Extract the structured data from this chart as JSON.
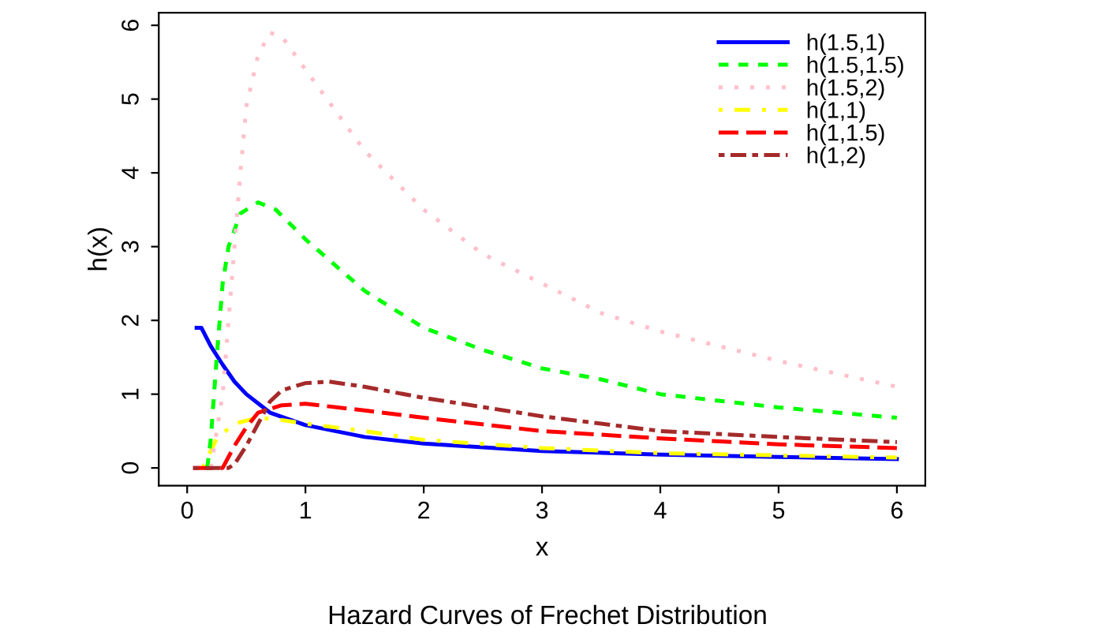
{
  "chart_data": {
    "type": "line",
    "title": "Hazard Curves of Frechet Distribution",
    "xlabel": "x",
    "ylabel": "h(x)",
    "xlim": [
      -0.24,
      6.24
    ],
    "ylim": [
      -0.24,
      6.17
    ],
    "xticks": [
      0,
      1,
      2,
      3,
      4,
      5,
      6
    ],
    "yticks": [
      0,
      1,
      2,
      3,
      4,
      5,
      6
    ],
    "grid": false,
    "legend": "top right",
    "series": [
      {
        "name": "h(1.5,1)",
        "color": "#0000ff",
        "line_style": "solid",
        "x": [
          0.08,
          0.12,
          0.2,
          0.3,
          0.4,
          0.5,
          0.7,
          1,
          1.5,
          2,
          3,
          4,
          5,
          6
        ],
        "values": [
          1.9,
          1.9,
          1.65,
          1.4,
          1.17,
          1.0,
          0.75,
          0.58,
          0.42,
          0.33,
          0.23,
          0.18,
          0.15,
          0.12
        ]
      },
      {
        "name": "h(1.5,1.5)",
        "color": "#00ff00",
        "line_style": "dashed",
        "x": [
          0.17,
          0.2,
          0.25,
          0.3,
          0.35,
          0.45,
          0.6,
          0.75,
          1,
          1.5,
          2,
          2.5,
          3,
          3.5,
          4,
          5,
          6
        ],
        "values": [
          0,
          0.4,
          1.5,
          2.5,
          3.0,
          3.45,
          3.6,
          3.5,
          3.1,
          2.4,
          1.9,
          1.6,
          1.35,
          1.2,
          1.0,
          0.82,
          0.68
        ]
      },
      {
        "name": "h(1.5,2)",
        "color": "#ffc0cb",
        "line_style": "dotted",
        "x": [
          0.2,
          0.3,
          0.35,
          0.4,
          0.45,
          0.5,
          0.6,
          0.7,
          0.8,
          1,
          1.5,
          2,
          2.5,
          3,
          3.5,
          4,
          5,
          6
        ],
        "values": [
          0,
          1.0,
          2.0,
          3.0,
          4.0,
          4.9,
          5.6,
          5.9,
          5.85,
          5.4,
          4.3,
          3.5,
          2.9,
          2.5,
          2.1,
          1.85,
          1.45,
          1.1
        ]
      },
      {
        "name": "h(1,1)",
        "color": "#ffff00",
        "line_style": "dotdash",
        "x": [
          0.13,
          0.25,
          0.4,
          0.6,
          0.8,
          1,
          1.5,
          2,
          3,
          4,
          5,
          6
        ],
        "values": [
          0,
          0.4,
          0.6,
          0.68,
          0.65,
          0.6,
          0.5,
          0.38,
          0.27,
          0.2,
          0.17,
          0.14
        ]
      },
      {
        "name": "h(1,1.5)",
        "color": "#ff0000",
        "line_style": "longdash",
        "x": [
          0.05,
          0.3,
          0.4,
          0.5,
          0.6,
          0.8,
          1,
          1.5,
          2,
          3,
          4,
          5,
          6
        ],
        "values": [
          0,
          0,
          0.3,
          0.55,
          0.75,
          0.85,
          0.87,
          0.78,
          0.68,
          0.5,
          0.4,
          0.32,
          0.27
        ]
      },
      {
        "name": "h(1,2)",
        "color": "#a52a2a",
        "line_style": "twodash",
        "x": [
          0.05,
          0.35,
          0.4,
          0.5,
          0.6,
          0.7,
          0.8,
          1,
          1.2,
          1.5,
          2,
          3,
          4,
          5,
          6
        ],
        "values": [
          0,
          0,
          0.05,
          0.3,
          0.6,
          0.9,
          1.05,
          1.15,
          1.17,
          1.1,
          0.95,
          0.7,
          0.5,
          0.42,
          0.35
        ]
      }
    ]
  }
}
